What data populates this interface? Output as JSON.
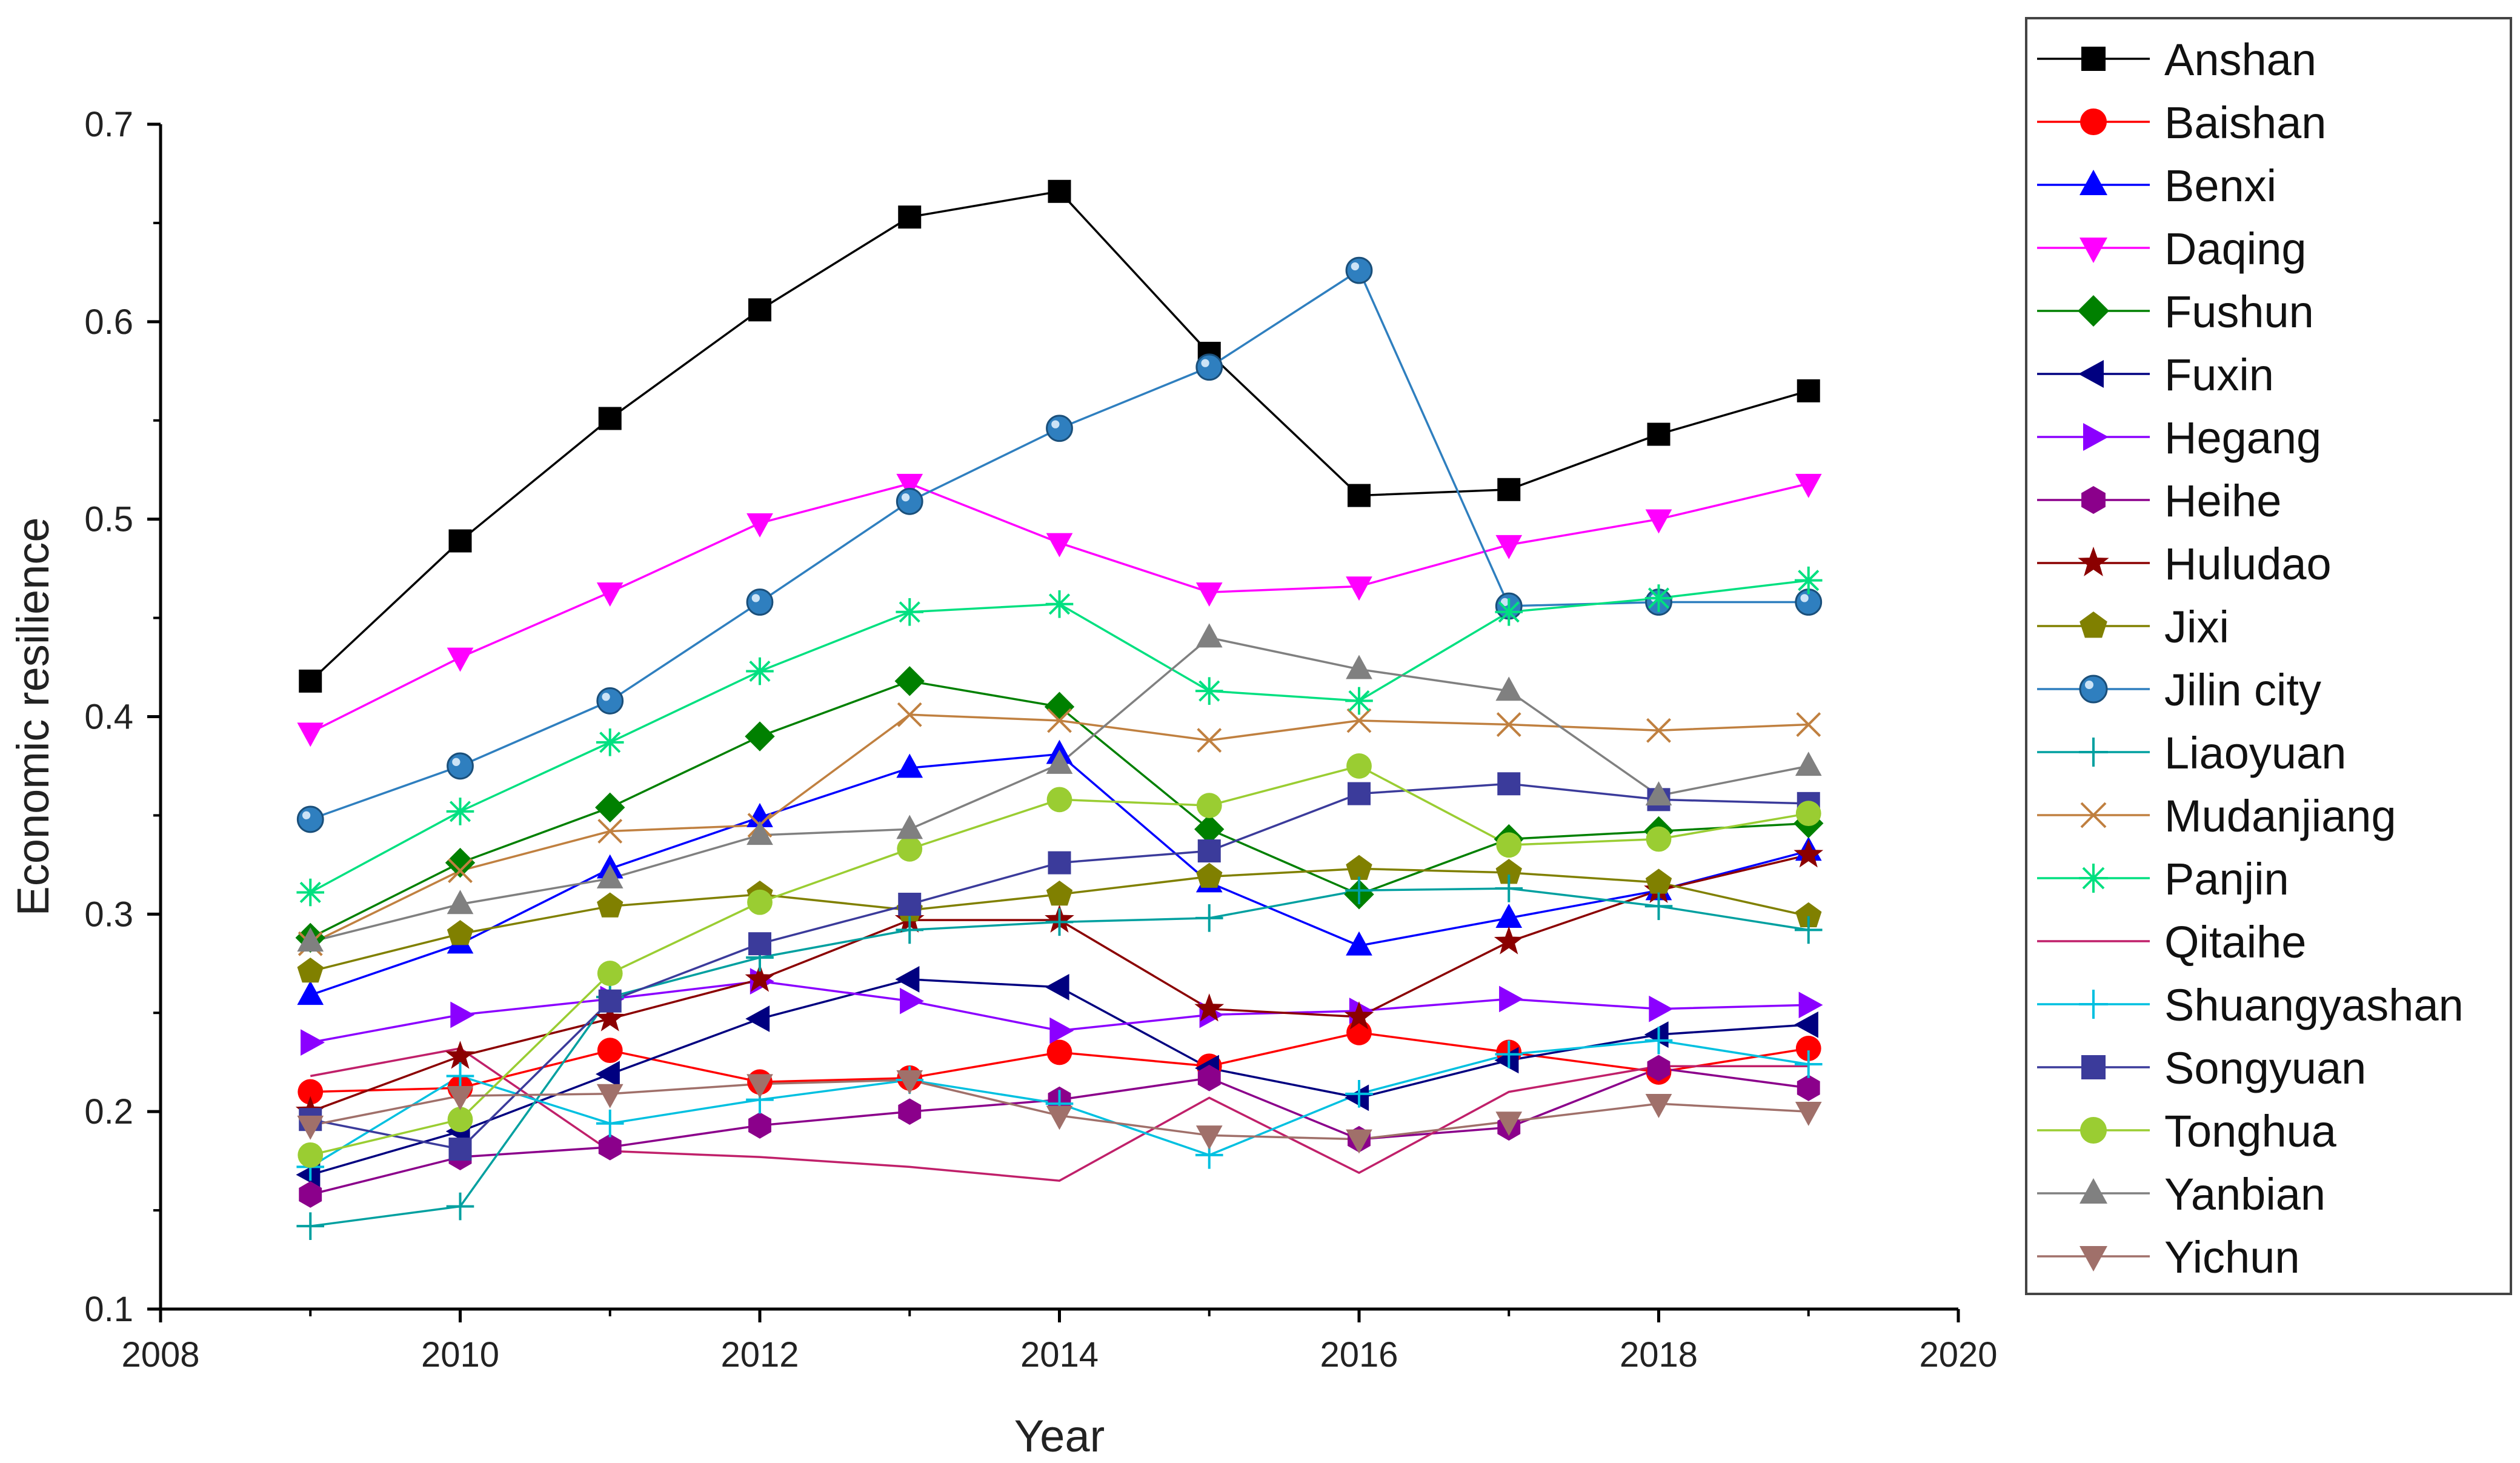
{
  "chart_data": {
    "type": "line",
    "title": "",
    "xlabel": "Year",
    "ylabel": "Economic  resilience",
    "xlim": [
      2008,
      2020
    ],
    "ylim": [
      0.1,
      0.7
    ],
    "x_ticks": [
      "2008",
      "2010",
      "2012",
      "2014",
      "2016",
      "2018",
      "2020"
    ],
    "y_ticks": [
      "0.1",
      "0.2",
      "0.3",
      "0.4",
      "0.5",
      "0.6",
      "0.7"
    ],
    "legend_position": "right-outside",
    "x": [
      2009,
      2010,
      2011,
      2012,
      2013,
      2014,
      2015,
      2016,
      2017,
      2018,
      2019
    ],
    "series": [
      {
        "name": "Anshan",
        "color": "#000000",
        "marker": "square",
        "values": [
          0.418,
          0.489,
          0.551,
          0.606,
          0.653,
          0.666,
          0.584,
          0.512,
          0.515,
          0.543,
          0.565
        ]
      },
      {
        "name": "Baishan",
        "color": "#ff0000",
        "marker": "circle",
        "values": [
          0.21,
          0.212,
          0.231,
          0.215,
          0.217,
          0.23,
          0.223,
          0.24,
          0.23,
          0.22,
          0.232
        ]
      },
      {
        "name": "Benxi",
        "color": "#0000ff",
        "marker": "triangle-up",
        "values": [
          0.259,
          0.285,
          0.323,
          0.349,
          0.374,
          0.381,
          0.316,
          0.284,
          0.298,
          0.312,
          0.332
        ]
      },
      {
        "name": "Daqing",
        "color": "#ff00ff",
        "marker": "triangle-down",
        "values": [
          0.392,
          0.43,
          0.463,
          0.498,
          0.518,
          0.488,
          0.463,
          0.466,
          0.487,
          0.5,
          0.518
        ]
      },
      {
        "name": "Fushun",
        "color": "#008000",
        "marker": "diamond",
        "values": [
          0.288,
          0.326,
          0.354,
          0.39,
          0.418,
          0.405,
          0.343,
          0.31,
          0.338,
          0.342,
          0.346
        ]
      },
      {
        "name": "Fuxin",
        "color": "#000080",
        "marker": "triangle-left",
        "values": [
          0.168,
          0.19,
          0.219,
          0.247,
          0.267,
          0.263,
          0.222,
          0.207,
          0.226,
          0.239,
          0.244
        ]
      },
      {
        "name": "Hegang",
        "color": "#8b00ff",
        "marker": "triangle-right",
        "values": [
          0.235,
          0.249,
          0.257,
          0.266,
          0.256,
          0.241,
          0.249,
          0.251,
          0.257,
          0.252,
          0.254
        ]
      },
      {
        "name": "Heihe",
        "color": "#8b008b",
        "marker": "hexagon",
        "values": [
          0.158,
          0.177,
          0.182,
          0.193,
          0.2,
          0.206,
          0.217,
          0.186,
          0.192,
          0.222,
          0.212
        ]
      },
      {
        "name": "Huludao",
        "color": "#8b0000",
        "marker": "star",
        "values": [
          0.2,
          0.228,
          0.247,
          0.267,
          0.297,
          0.297,
          0.252,
          0.248,
          0.286,
          0.312,
          0.33
        ]
      },
      {
        "name": "Jixi",
        "color": "#808000",
        "marker": "pentagon",
        "values": [
          0.271,
          0.29,
          0.304,
          0.31,
          0.302,
          0.31,
          0.319,
          0.323,
          0.321,
          0.316,
          0.299
        ]
      },
      {
        "name": "Jilin city",
        "color": "#2f7fbf",
        "marker": "sphere",
        "values": [
          0.348,
          0.375,
          0.408,
          0.458,
          0.509,
          0.546,
          0.577,
          0.626,
          0.456,
          0.458,
          0.458
        ]
      },
      {
        "name": "Liaoyuan",
        "color": "#00a0a0",
        "marker": "plus",
        "values": [
          0.142,
          0.152,
          0.258,
          0.278,
          0.292,
          0.296,
          0.298,
          0.312,
          0.313,
          0.304,
          0.292
        ]
      },
      {
        "name": "Mudanjiang",
        "color": "#c08040",
        "marker": "x",
        "values": [
          0.285,
          0.322,
          0.342,
          0.345,
          0.401,
          0.398,
          0.388,
          0.398,
          0.396,
          0.393,
          0.396
        ]
      },
      {
        "name": "Panjin",
        "color": "#00e080",
        "marker": "asterisk",
        "values": [
          0.311,
          0.352,
          0.387,
          0.423,
          0.453,
          0.457,
          0.413,
          0.408,
          0.453,
          0.46,
          0.469
        ]
      },
      {
        "name": "Qitaihe",
        "color": "#c0206a",
        "marker": "none",
        "values": [
          0.218,
          0.232,
          0.18,
          0.177,
          0.172,
          0.165,
          0.207,
          0.169,
          0.21,
          0.223,
          0.223
        ]
      },
      {
        "name": "Shuangyashan",
        "color": "#00c0e0",
        "marker": "plus",
        "values": [
          0.172,
          0.218,
          0.194,
          0.206,
          0.216,
          0.204,
          0.178,
          0.209,
          0.229,
          0.236,
          0.224
        ]
      },
      {
        "name": "Songyuan",
        "color": "#3b3b9b",
        "marker": "square",
        "values": [
          0.196,
          0.181,
          0.256,
          0.285,
          0.305,
          0.326,
          0.332,
          0.361,
          0.366,
          0.358,
          0.356
        ]
      },
      {
        "name": "Tonghua",
        "color": "#9acd32",
        "marker": "circle",
        "values": [
          0.178,
          0.196,
          0.27,
          0.306,
          0.333,
          0.358,
          0.355,
          0.375,
          0.335,
          0.338,
          0.351
        ]
      },
      {
        "name": "Yanbian",
        "color": "#808080",
        "marker": "triangle-up",
        "values": [
          0.286,
          0.305,
          0.318,
          0.34,
          0.343,
          0.376,
          0.44,
          0.424,
          0.413,
          0.36,
          0.375
        ]
      },
      {
        "name": "Yichun",
        "color": "#a0706a",
        "marker": "triangle-down",
        "values": [
          0.193,
          0.208,
          0.209,
          0.214,
          0.216,
          0.198,
          0.188,
          0.186,
          0.195,
          0.204,
          0.2
        ]
      }
    ]
  }
}
